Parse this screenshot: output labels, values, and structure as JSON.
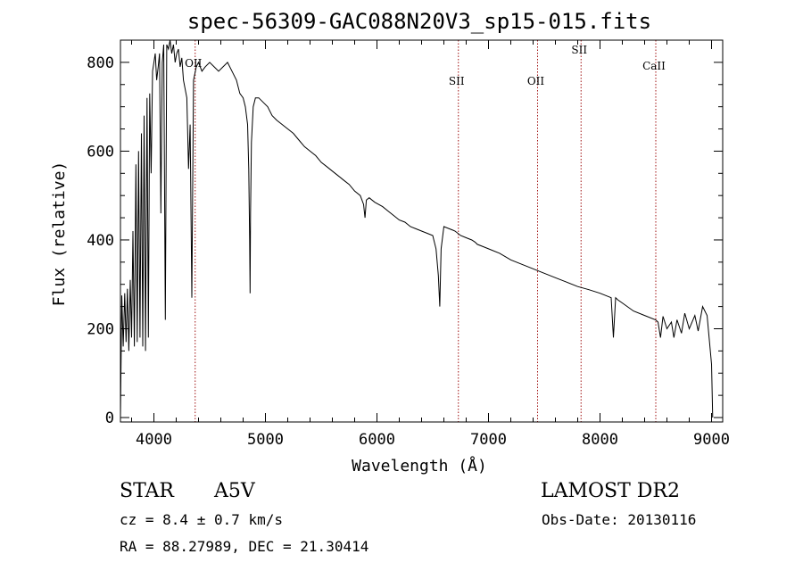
{
  "chart_data": {
    "type": "line",
    "title": "spec-56309-GAC088N20V3_sp15-015.fits",
    "xlabel": "Wavelength (Å)",
    "ylabel": "Flux (relative)",
    "xlim": [
      3700,
      9100
    ],
    "ylim": [
      -10,
      850
    ],
    "x_ticks": [
      4000,
      5000,
      6000,
      7000,
      8000,
      9000
    ],
    "y_ticks": [
      0,
      200,
      400,
      600,
      800
    ],
    "grid": false,
    "series": [
      {
        "color": "#000000",
        "x": [
          3700,
          3712,
          3725,
          3738,
          3750,
          3762,
          3775,
          3788,
          3800,
          3812,
          3825,
          3838,
          3850,
          3862,
          3875,
          3888,
          3900,
          3912,
          3925,
          3938,
          3950,
          3962,
          3975,
          3988,
          4000,
          4012,
          4025,
          4038,
          4050,
          4062,
          4075,
          4088,
          4102,
          4115,
          4130,
          4145,
          4160,
          4175,
          4190,
          4205,
          4220,
          4235,
          4250,
          4265,
          4280,
          4295,
          4310,
          4325,
          4340,
          4355,
          4380,
          4400,
          4430,
          4460,
          4500,
          4540,
          4580,
          4620,
          4660,
          4700,
          4740,
          4770,
          4800,
          4820,
          4840,
          4850,
          4858,
          4862,
          4866,
          4874,
          4890,
          4910,
          4940,
          4980,
          5020,
          5060,
          5100,
          5150,
          5200,
          5250,
          5300,
          5350,
          5400,
          5450,
          5500,
          5550,
          5600,
          5650,
          5700,
          5750,
          5800,
          5850,
          5880,
          5893,
          5905,
          5930,
          5980,
          6050,
          6100,
          6150,
          6200,
          6250,
          6300,
          6350,
          6400,
          6450,
          6500,
          6530,
          6550,
          6563,
          6575,
          6600,
          6650,
          6700,
          6750,
          6800,
          6850,
          6880,
          6900,
          6950,
          7000,
          7100,
          7200,
          7300,
          7400,
          7500,
          7600,
          7700,
          7800,
          7900,
          8000,
          8100,
          8120,
          8140,
          8160,
          8200,
          8300,
          8400,
          8498,
          8520,
          8542,
          8565,
          8600,
          8640,
          8662,
          8690,
          8730,
          8760,
          8800,
          8850,
          8880,
          8920,
          8960,
          9000,
          9010
        ],
        "y": [
          0,
          275,
          160,
          280,
          170,
          290,
          150,
          310,
          180,
          420,
          160,
          570,
          170,
          600,
          180,
          640,
          160,
          680,
          150,
          720,
          180,
          730,
          550,
          780,
          800,
          820,
          760,
          790,
          820,
          460,
          800,
          840,
          220,
          840,
          830,
          850,
          820,
          840,
          800,
          820,
          830,
          790,
          810,
          760,
          740,
          720,
          560,
          660,
          270,
          760,
          790,
          800,
          780,
          790,
          800,
          790,
          780,
          790,
          800,
          780,
          760,
          730,
          720,
          700,
          660,
          560,
          400,
          280,
          460,
          620,
          700,
          720,
          720,
          710,
          700,
          680,
          670,
          660,
          650,
          640,
          625,
          610,
          600,
          590,
          575,
          565,
          555,
          545,
          535,
          525,
          510,
          500,
          480,
          450,
          490,
          495,
          485,
          475,
          465,
          455,
          445,
          440,
          430,
          425,
          420,
          415,
          410,
          380,
          320,
          250,
          380,
          430,
          425,
          420,
          410,
          405,
          400,
          395,
          390,
          385,
          380,
          370,
          355,
          345,
          335,
          325,
          315,
          305,
          295,
          288,
          280,
          270,
          180,
          270,
          265,
          258,
          240,
          230,
          220,
          215,
          180,
          228,
          200,
          215,
          180,
          220,
          190,
          235,
          200,
          230,
          195,
          250,
          230,
          120,
          0
        ]
      }
    ],
    "annotations": [
      {
        "label": "OII",
        "wavelength": 4370
      },
      {
        "label": "SII",
        "wavelength": 6730
      },
      {
        "label": "OII",
        "wavelength": 7440
      },
      {
        "label": "SII",
        "wavelength": 7830
      },
      {
        "label": "CaII",
        "wavelength": 8500
      }
    ]
  },
  "info": {
    "object_class": "STAR",
    "subclass": "A5V",
    "survey": "LAMOST DR2",
    "cz": "cz = 8.4 ± 0.7 km/s",
    "obs_date": "Obs-Date: 20130116",
    "coords": "RA =  88.27989, DEC =  21.30414"
  },
  "colors": {
    "spectrum": "#000000",
    "annotation_line": "#a01010",
    "background": "#ffffff"
  }
}
